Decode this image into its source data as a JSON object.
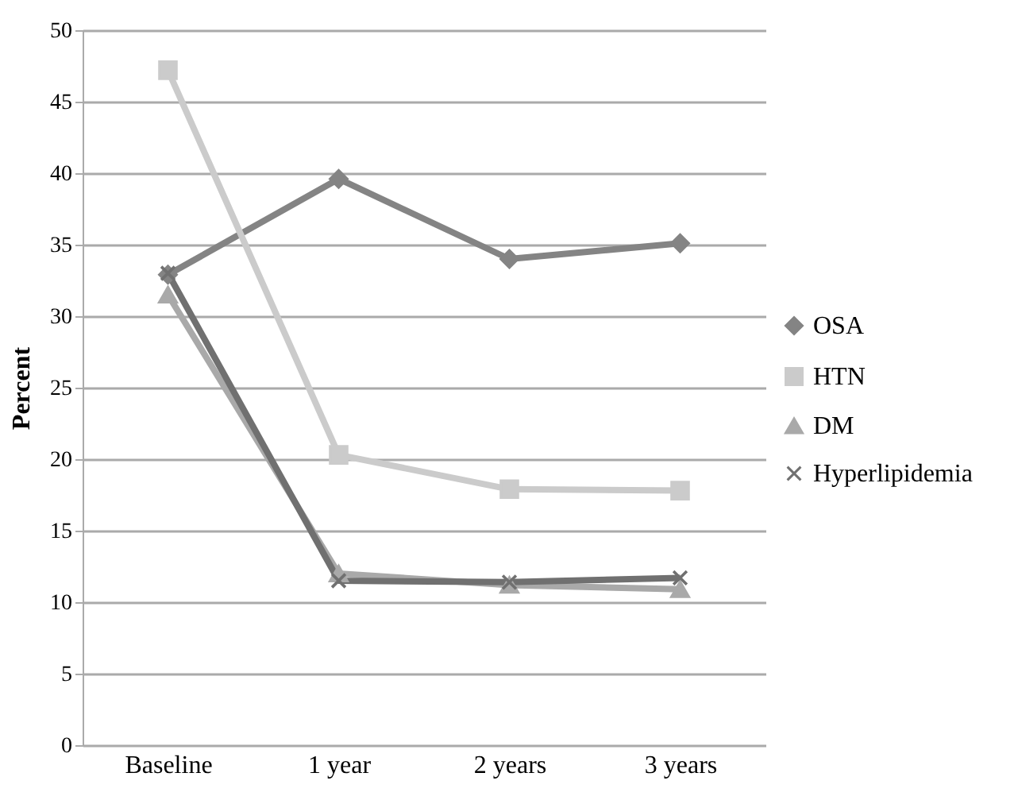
{
  "chart_data": {
    "type": "line",
    "ylabel": "Percent",
    "categories": [
      "Baseline",
      "1 year",
      "2 years",
      "3 years"
    ],
    "series": [
      {
        "name": "OSA",
        "color": "#848484",
        "marker": "diamond",
        "values": [
          32.9,
          39.6,
          34.0,
          35.1
        ]
      },
      {
        "name": "HTN",
        "color": "#cbcbcb",
        "marker": "square",
        "values": [
          47.2,
          20.3,
          17.9,
          17.8
        ]
      },
      {
        "name": "DM",
        "color": "#a9a9a9",
        "marker": "triangle",
        "values": [
          31.5,
          12.0,
          11.2,
          10.9
        ]
      },
      {
        "name": "Hyperlipidemia",
        "color": "#707070",
        "marker": "cross",
        "values": [
          33.0,
          11.5,
          11.4,
          11.7
        ]
      }
    ],
    "ylim": [
      0,
      50
    ],
    "yticks": [
      0,
      5,
      10,
      15,
      20,
      25,
      30,
      35,
      40,
      45,
      50
    ],
    "grid": "y",
    "legend": "right",
    "line_style": "solid"
  }
}
